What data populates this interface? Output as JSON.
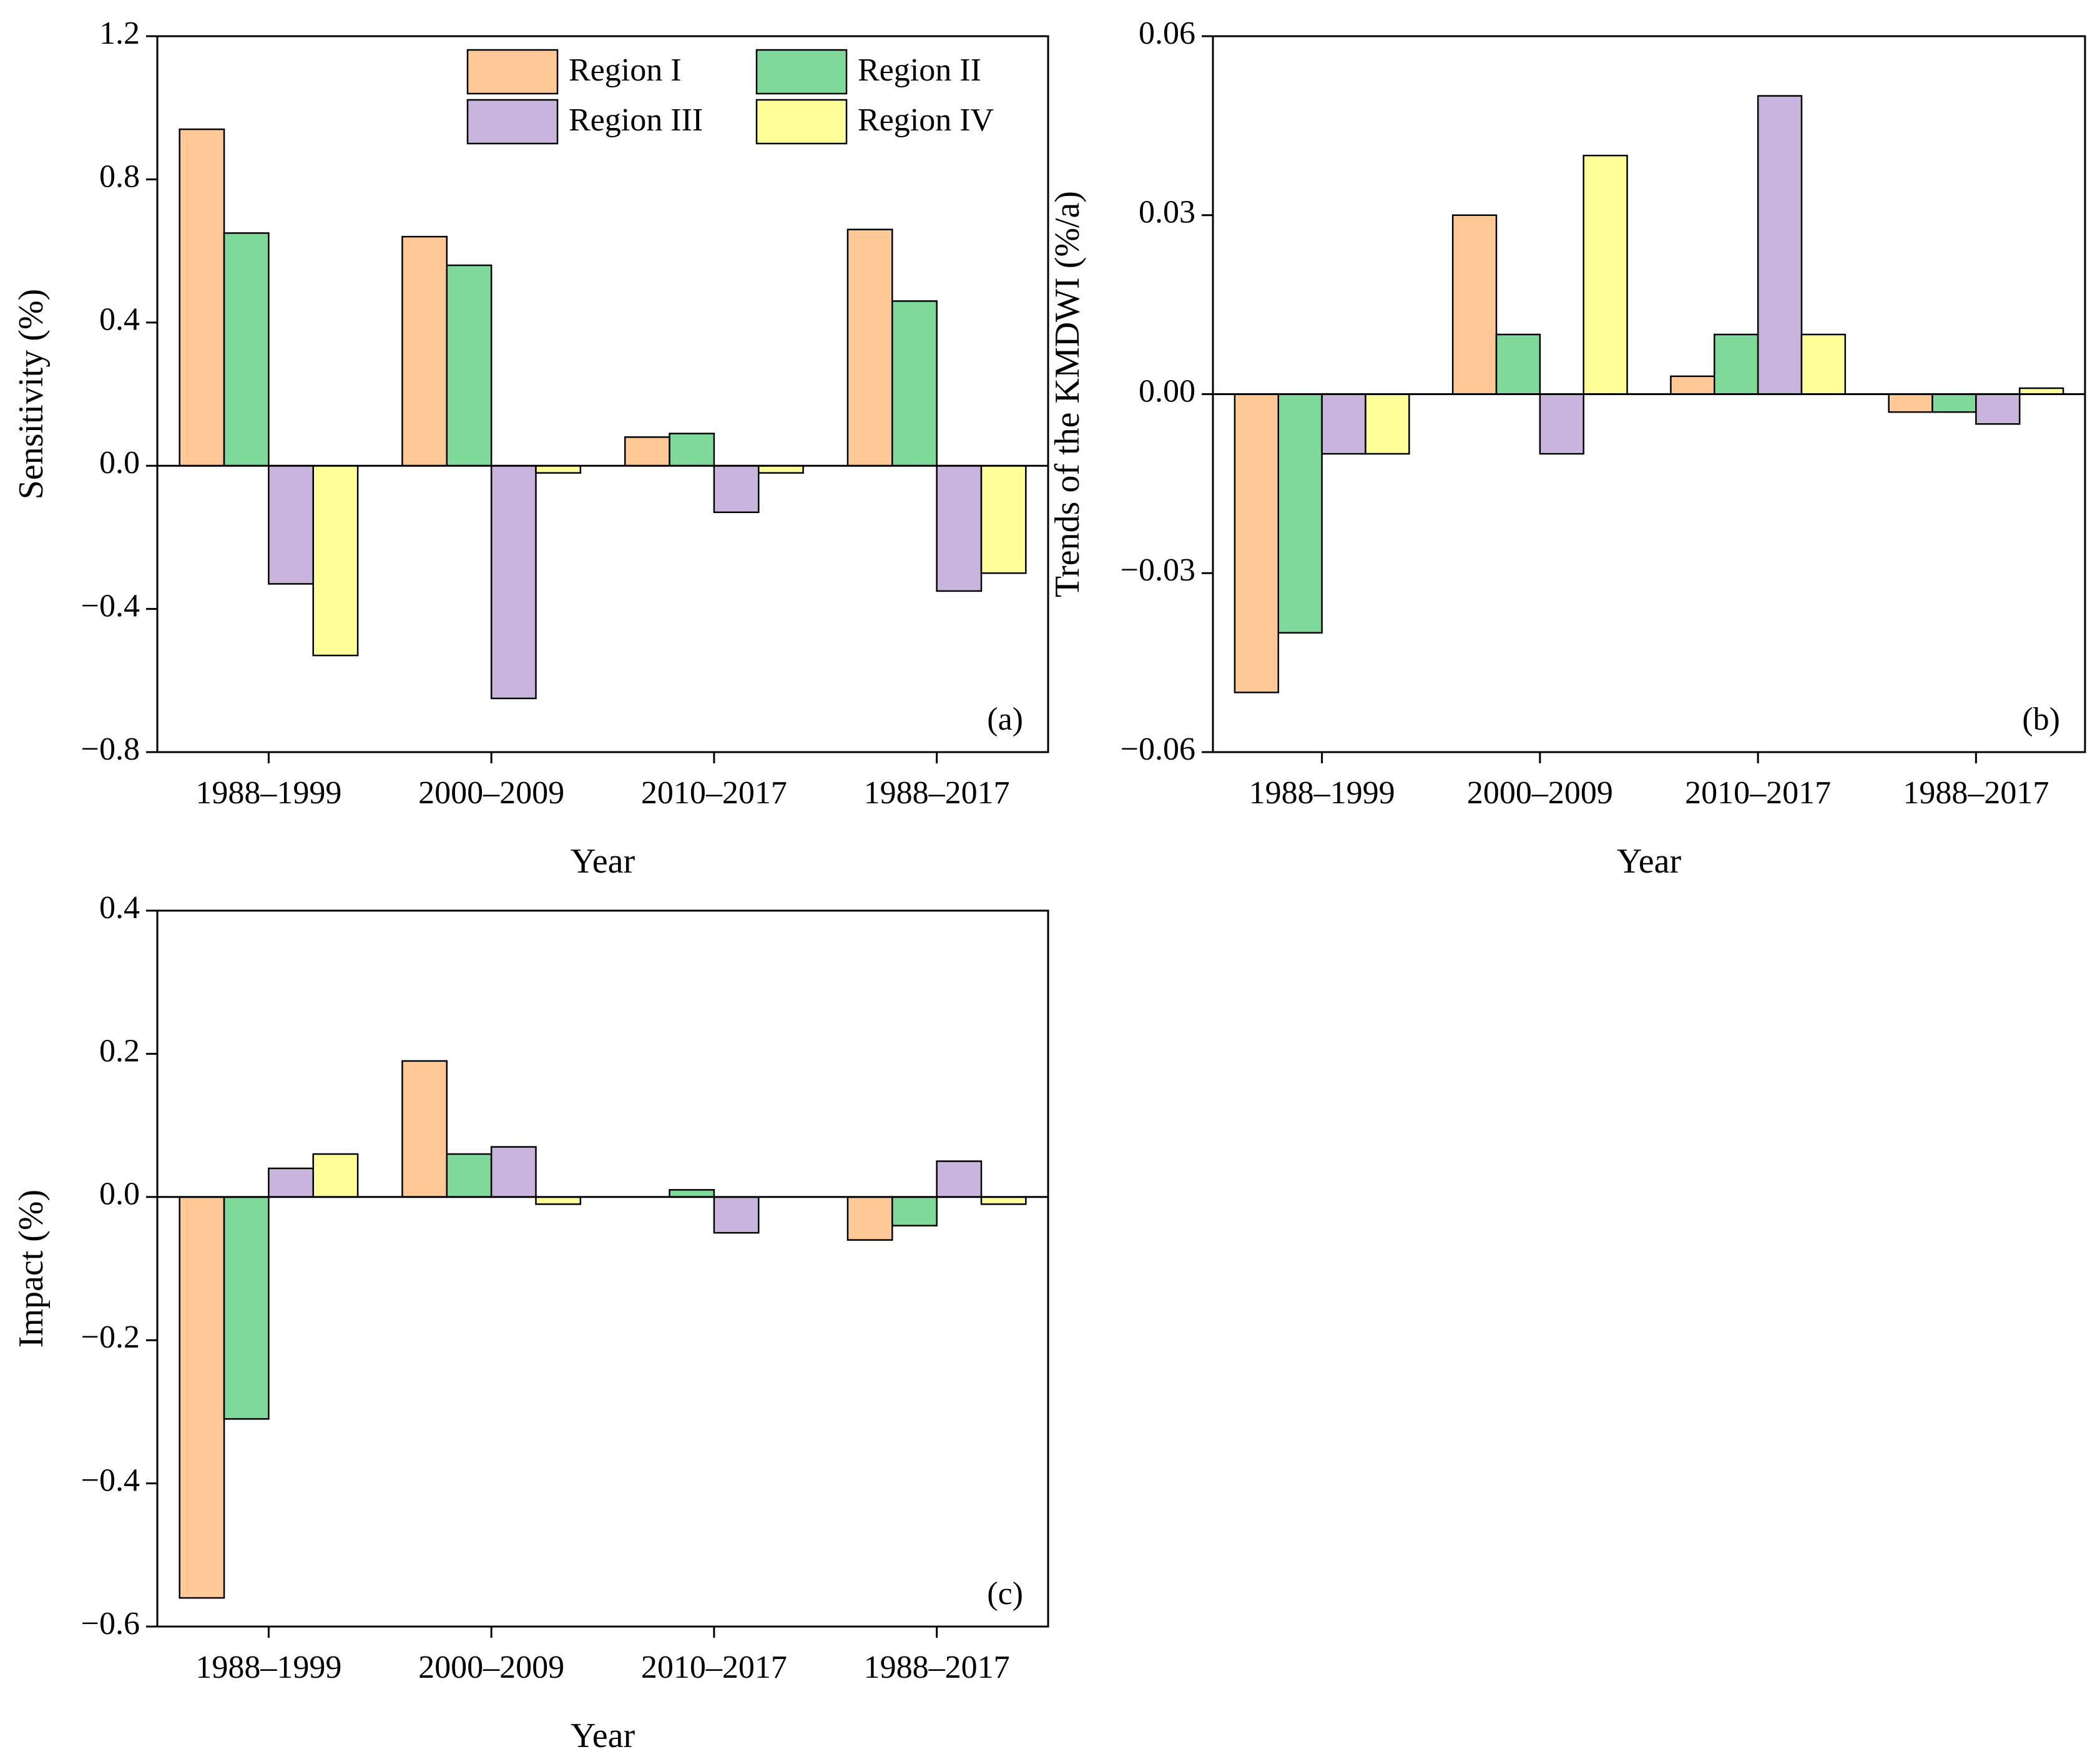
{
  "chart_data": [
    {
      "type": "bar",
      "ylabel": "Sensitivity (%)",
      "xlabel": "Year",
      "annotation": "(a)",
      "categories": [
        "1988–1999",
        "2000–2009",
        "2010–2017",
        "1988–2017"
      ],
      "series": [
        {
          "name": "Region I",
          "color": "#ffc896",
          "values": [
            0.94,
            0.64,
            0.08,
            0.66
          ]
        },
        {
          "name": "Region II",
          "color": "#7fd99a",
          "values": [
            0.65,
            0.56,
            0.09,
            0.46
          ]
        },
        {
          "name": "Region III",
          "color": "#c8b4dc",
          "values": [
            -0.33,
            -0.65,
            -0.13,
            -0.35
          ]
        },
        {
          "name": "Region IV",
          "color": "#ffff99",
          "values": [
            -0.53,
            -0.02,
            -0.02,
            -0.3
          ]
        }
      ],
      "ylim": [
        -0.8,
        1.2
      ],
      "yticks": [
        {
          "value": -0.8,
          "label": "−0.8"
        },
        {
          "value": -0.4,
          "label": "−0.4"
        },
        {
          "value": 0,
          "label": "0.0"
        },
        0.4,
        0.8,
        1.2
      ],
      "legend": "upper right"
    },
    {
      "type": "bar",
      "ylabel": "Trends of the KMDWI (%/a)",
      "xlabel": "Year",
      "annotation": "(b)",
      "categories": [
        "1988–1999",
        "2000–2009",
        "2010–2017",
        "1988–2017"
      ],
      "series": [
        {
          "color": "#ffc896",
          "values": [
            -0.05,
            0.03,
            0.003,
            -0.003
          ]
        },
        {
          "color": "#7fd99a",
          "values": [
            -0.04,
            0.01,
            0.01,
            -0.003
          ]
        },
        {
          "color": "#c8b4dc",
          "values": [
            -0.01,
            -0.01,
            0.05,
            -0.005
          ]
        },
        {
          "color": "#ffff99",
          "values": [
            -0.01,
            0.04,
            0.01,
            0.001
          ]
        }
      ],
      "ylim": [
        -0.06,
        0.06
      ],
      "yticks": [
        {
          "value": -0.06,
          "label": "−0.06"
        },
        {
          "value": -0.03,
          "label": "−0.03"
        },
        {
          "value": 0,
          "label": "0.00"
        },
        0.03,
        0.06
      ]
    },
    {
      "type": "bar",
      "ylabel": "Impact (%)",
      "xlabel": "Year",
      "annotation": "(c)",
      "categories": [
        "1988–1999",
        "2000–2009",
        "2010–2017",
        "1988–2017"
      ],
      "series": [
        {
          "color": "#ffc896",
          "values": [
            -0.56,
            0.19,
            0,
            -0.06
          ]
        },
        {
          "color": "#7fd99a",
          "values": [
            -0.31,
            0.06,
            0.01,
            -0.04
          ]
        },
        {
          "color": "#c8b4dc",
          "values": [
            0.04,
            0.07,
            -0.05,
            0.05
          ]
        },
        {
          "color": "#ffff99",
          "values": [
            0.06,
            -0.01,
            0,
            -0.01
          ]
        }
      ],
      "ylim": [
        -0.6,
        0.4
      ],
      "yticks": [
        {
          "value": -0.6,
          "label": "−0.6"
        },
        {
          "value": -0.4,
          "label": "−0.4"
        },
        {
          "value": -0.2,
          "label": "−0.2"
        },
        {
          "value": 0,
          "label": "0.0"
        },
        0.2,
        0.4
      ]
    }
  ]
}
